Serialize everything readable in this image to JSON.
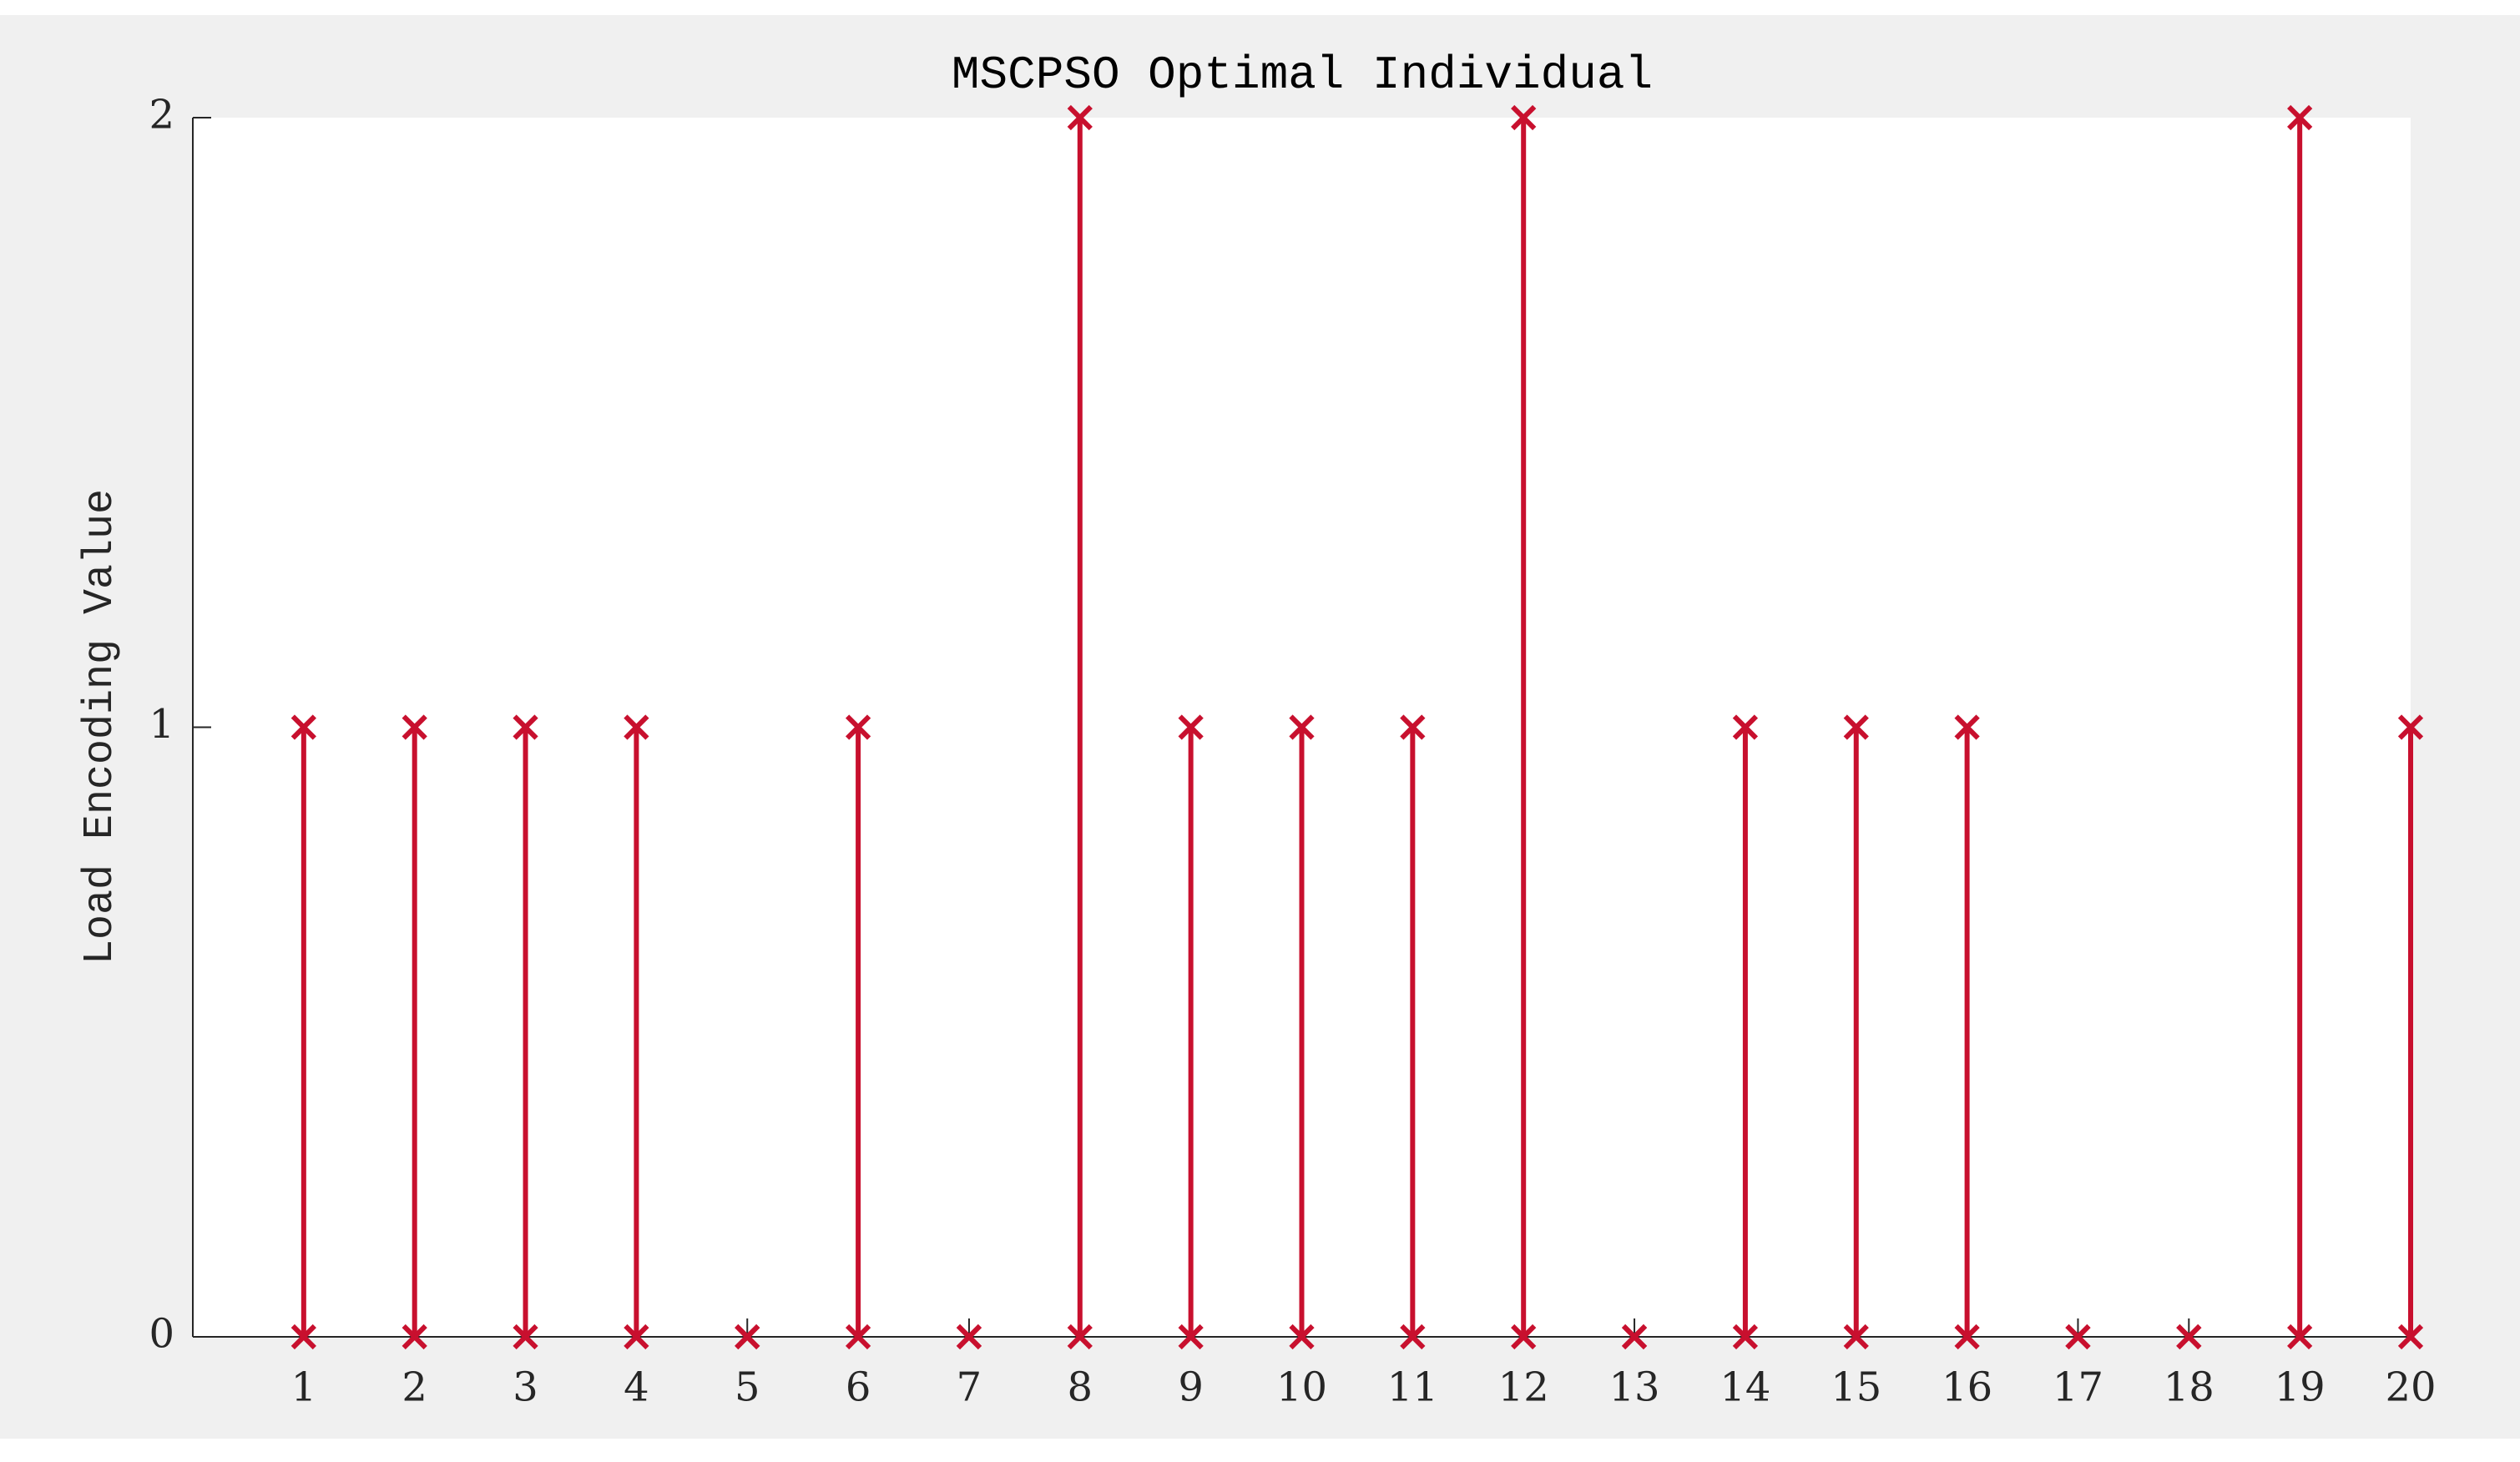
{
  "chart_data": {
    "type": "stem",
    "title": "MSCPSO Optimal Individual",
    "y_label": "Load Encoding Value",
    "x": [
      1,
      2,
      3,
      4,
      5,
      6,
      7,
      8,
      9,
      10,
      11,
      12,
      13,
      14,
      15,
      16,
      17,
      18,
      19,
      20
    ],
    "values": [
      1,
      1,
      1,
      1,
      0,
      1,
      0,
      2,
      1,
      1,
      1,
      2,
      0,
      1,
      1,
      1,
      0,
      0,
      2,
      1
    ],
    "color": "#c8102e",
    "marker": "x",
    "xlim": [
      0,
      20
    ],
    "xticks": [
      1,
      2,
      3,
      4,
      5,
      6,
      7,
      8,
      9,
      10,
      11,
      12,
      13,
      14,
      15,
      16,
      17,
      18,
      19,
      20
    ],
    "ylim": [
      0,
      2
    ],
    "yticks": [
      0,
      1,
      2
    ],
    "grid": false
  }
}
